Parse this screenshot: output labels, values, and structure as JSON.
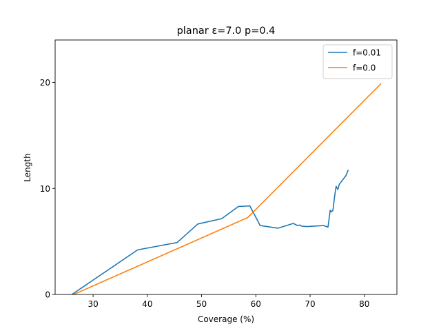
{
  "chart_data": {
    "type": "line",
    "title": "planar ε=7.0 p=0.4",
    "xlabel": "Coverage (%)",
    "ylabel": "Length",
    "xlim": [
      23,
      86
    ],
    "ylim": [
      0,
      24
    ],
    "xticks": [
      30,
      40,
      50,
      60,
      70,
      80
    ],
    "yticks": [
      0,
      10,
      20
    ],
    "grid": false,
    "legend": "top-right",
    "series": [
      {
        "name": "f=0.01",
        "color": "#1f77b4",
        "x": [
          26.1,
          38.2,
          45.5,
          49.3,
          53.7,
          56.8,
          58.9,
          60.8,
          64.1,
          66.9,
          67.7,
          68.1,
          68.4,
          69.4,
          72.5,
          73.3,
          73.7,
          73.9,
          74.2,
          74.5,
          74.8,
          75.1,
          75.4,
          76.6,
          77.0
        ],
        "y": [
          0.0,
          4.2,
          4.9,
          6.65,
          7.15,
          8.3,
          8.35,
          6.5,
          6.25,
          6.7,
          6.5,
          6.55,
          6.45,
          6.4,
          6.5,
          6.35,
          7.95,
          7.8,
          7.9,
          9.2,
          10.2,
          9.9,
          10.4,
          11.2,
          11.7
        ]
      },
      {
        "name": "f=0.0",
        "color": "#ff7f0e",
        "x": [
          26.0,
          58.5,
          83.0
        ],
        "y": [
          -0.1,
          7.25,
          19.85
        ]
      }
    ]
  }
}
